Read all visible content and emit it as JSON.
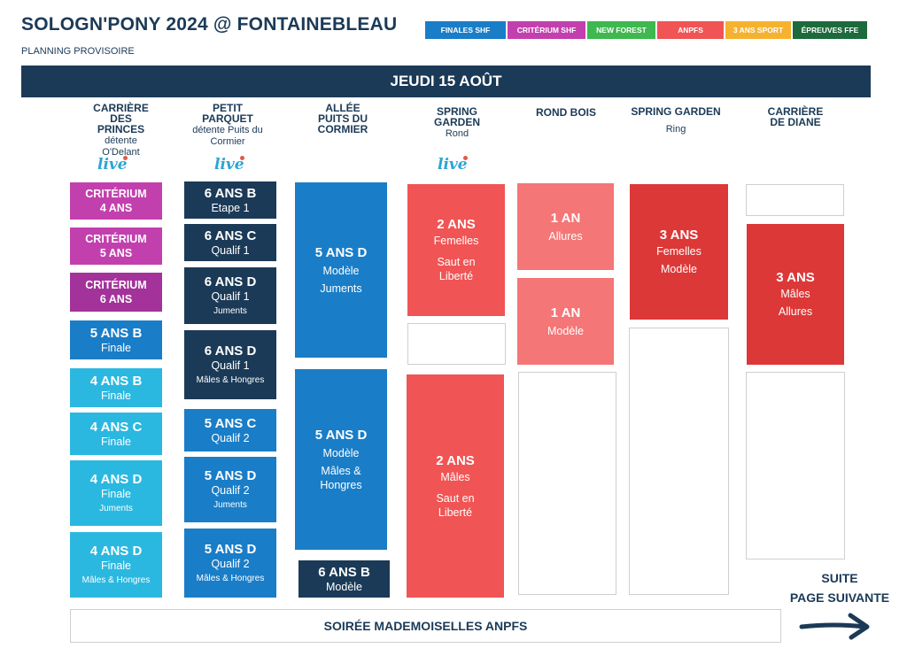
{
  "header": {
    "title": "SOLOGN'PONY 2024 @ FONTAINEBLEAU",
    "subtitle": "PLANNING PROVISOIRE"
  },
  "legend": [
    {
      "label": "FINALES SHF",
      "color": "#1a7dc7"
    },
    {
      "label": "CRITÉRIUM SHF",
      "color": "#c240ad"
    },
    {
      "label": "NEW FOREST",
      "color": "#3eb84f"
    },
    {
      "label": "ANPFS",
      "color": "#f05454"
    },
    {
      "label": "3 ANS SPORT",
      "color": "#f5b230"
    },
    {
      "label": "ÉPREUVES FFE",
      "color": "#1d6b3c"
    }
  ],
  "day": "JEUDI 15 AOÛT",
  "live_label": "live",
  "columns": [
    {
      "name": "CARRIÈRE DES PRINCES",
      "sub": "détente O'Delant"
    },
    {
      "name": "PETIT PARQUET",
      "sub": "détente Puits du Cormier"
    },
    {
      "name": "ALLÉE PUITS DU CORMIER",
      "sub": ""
    },
    {
      "name": "SPRING GARDEN",
      "sub": "Rond"
    },
    {
      "name": "ROND BOIS",
      "sub": ""
    },
    {
      "name": "SPRING GARDEN",
      "sub": "Ring"
    },
    {
      "name": "CARRIÈRE DE DIANE",
      "sub": ""
    }
  ],
  "col1": [
    {
      "h": "CRITÉRIUM",
      "l": "4 ANS"
    },
    {
      "h": "CRITÉRIUM",
      "l": "5 ANS"
    },
    {
      "h": "CRITÉRIUM",
      "l": "6 ANS"
    },
    {
      "h": "5 ANS B",
      "l": "Finale"
    },
    {
      "h": "4 ANS B",
      "l": "Finale"
    },
    {
      "h": "4 ANS C",
      "l": "Finale"
    },
    {
      "h": "4 ANS D",
      "l": "Finale",
      "t": "Juments"
    },
    {
      "h": "4 ANS D",
      "l": "Finale",
      "t": "Mâles & Hongres"
    }
  ],
  "col2": [
    {
      "h": "6 ANS B",
      "l": "Etape 1"
    },
    {
      "h": "6 ANS C",
      "l": "Qualif 1"
    },
    {
      "h": "6 ANS D",
      "l": "Qualif 1",
      "t": "Juments"
    },
    {
      "h": "6 ANS D",
      "l": "Qualif 1",
      "t": "Mâles & Hongres"
    },
    {
      "h": "5 ANS C",
      "l": "Qualif 2"
    },
    {
      "h": "5 ANS D",
      "l": "Qualif 2",
      "t": "Juments"
    },
    {
      "h": "5 ANS D",
      "l": "Qualif 2",
      "t": "Mâles & Hongres"
    }
  ],
  "col3": [
    {
      "h": "5 ANS D",
      "l": "Modèle",
      "l2": "Juments"
    },
    {
      "h": "5 ANS D",
      "l": "Modèle",
      "l2": "Mâles &",
      "l3": "Hongres"
    },
    {
      "h": "6 ANS B",
      "l": "Modèle"
    }
  ],
  "col4": [
    {
      "h": "2 ANS",
      "l": "Femelles",
      "l2": "Saut en",
      "l3": "Liberté"
    },
    {
      "h": "2 ANS",
      "l": "Mâles",
      "l2": "Saut en",
      "l3": "Liberté"
    }
  ],
  "col5": [
    {
      "h": "1 AN",
      "l": "Allures"
    },
    {
      "h": "1 AN",
      "l": "Modèle"
    }
  ],
  "col6": [
    {
      "h": "3 ANS",
      "l": "Femelles",
      "l2": "Modèle"
    }
  ],
  "col7": [
    {
      "h": "3 ANS",
      "l": "Mâles",
      "l2": "Allures"
    }
  ],
  "footer": {
    "soiree": "SOIRÉE MADEMOISELLES ANPFS",
    "suite_line1": "SUITE",
    "suite_line2": "PAGE SUIVANTE"
  }
}
